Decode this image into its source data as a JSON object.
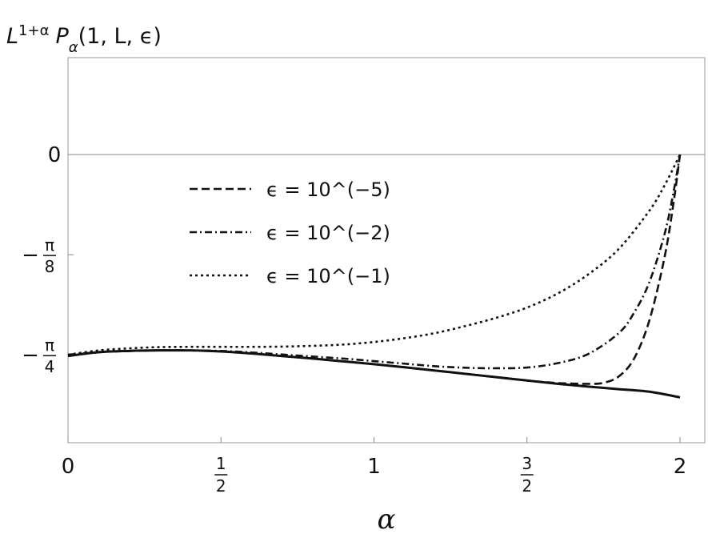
{
  "chart_data": {
    "type": "line",
    "title": "",
    "ylabel_parts": {
      "base": "L",
      "sup": "1+α",
      "fn": "P",
      "sub": "α",
      "args": "(1, L, ϵ)"
    },
    "xlabel": "α",
    "xlim": [
      0,
      2
    ],
    "ylim": [
      -1.13,
      0.38
    ],
    "x_ticks": [
      {
        "value": 0,
        "label": "0"
      },
      {
        "value": 0.5,
        "num": "1",
        "den": "2"
      },
      {
        "value": 1,
        "label": "1"
      },
      {
        "value": 1.5,
        "num": "3",
        "den": "2"
      },
      {
        "value": 2,
        "label": "2"
      }
    ],
    "y_ticks": [
      {
        "value": 0,
        "label": "0"
      },
      {
        "value": -0.3927,
        "sign": "−",
        "num": "π",
        "den": "8"
      },
      {
        "value": -0.7854,
        "sign": "−",
        "num": "π",
        "den": "4"
      }
    ],
    "legend_position": "upper-left",
    "series": [
      {
        "dash": "solid",
        "x": [
          0,
          0.1,
          0.2,
          0.3,
          0.4,
          0.5,
          0.6,
          0.7,
          0.8,
          0.9,
          1.0,
          1.1,
          1.2,
          1.3,
          1.4,
          1.5,
          1.6,
          1.7,
          1.8,
          1.9,
          2.0
        ],
        "values": [
          -0.79,
          -0.775,
          -0.77,
          -0.768,
          -0.768,
          -0.772,
          -0.78,
          -0.79,
          -0.8,
          -0.811,
          -0.822,
          -0.834,
          -0.847,
          -0.86,
          -0.873,
          -0.886,
          -0.899,
          -0.91,
          -0.92,
          -0.93,
          -0.952
        ]
      },
      {
        "name": "ϵ = 10^(−5)",
        "dash": "long-dash",
        "x": [
          0,
          0.1,
          0.2,
          0.3,
          0.4,
          0.5,
          0.6,
          0.7,
          0.8,
          0.9,
          1.0,
          1.1,
          1.2,
          1.3,
          1.4,
          1.5,
          1.6,
          1.7,
          1.75,
          1.8,
          1.85,
          1.9,
          1.95,
          1.98,
          2.0
        ],
        "values": [
          -0.79,
          -0.775,
          -0.77,
          -0.768,
          -0.768,
          -0.772,
          -0.78,
          -0.79,
          -0.8,
          -0.811,
          -0.822,
          -0.834,
          -0.847,
          -0.86,
          -0.873,
          -0.886,
          -0.896,
          -0.899,
          -0.895,
          -0.87,
          -0.8,
          -0.65,
          -0.4,
          -0.18,
          0
        ]
      },
      {
        "name": "ϵ = 10^(−2)",
        "dash": "dash-dot",
        "x": [
          0,
          0.1,
          0.2,
          0.3,
          0.4,
          0.5,
          0.6,
          0.7,
          0.8,
          0.9,
          1.0,
          1.1,
          1.2,
          1.3,
          1.4,
          1.5,
          1.6,
          1.7,
          1.8,
          1.85,
          1.9,
          1.95,
          1.98,
          2.0
        ],
        "values": [
          -0.785,
          -0.775,
          -0.77,
          -0.768,
          -0.768,
          -0.77,
          -0.776,
          -0.784,
          -0.792,
          -0.8,
          -0.81,
          -0.82,
          -0.83,
          -0.836,
          -0.838,
          -0.835,
          -0.818,
          -0.782,
          -0.7,
          -0.62,
          -0.5,
          -0.31,
          -0.14,
          0
        ]
      },
      {
        "name": "ϵ = 10^(−1)",
        "dash": "dotted",
        "x": [
          0,
          0.1,
          0.2,
          0.3,
          0.4,
          0.5,
          0.6,
          0.7,
          0.8,
          0.9,
          1.0,
          1.1,
          1.2,
          1.3,
          1.4,
          1.5,
          1.6,
          1.7,
          1.8,
          1.9,
          1.95,
          2.0
        ],
        "values": [
          -0.785,
          -0.768,
          -0.76,
          -0.755,
          -0.754,
          -0.754,
          -0.754,
          -0.753,
          -0.75,
          -0.745,
          -0.735,
          -0.72,
          -0.7,
          -0.672,
          -0.64,
          -0.6,
          -0.545,
          -0.47,
          -0.37,
          -0.22,
          -0.12,
          0
        ]
      }
    ]
  }
}
